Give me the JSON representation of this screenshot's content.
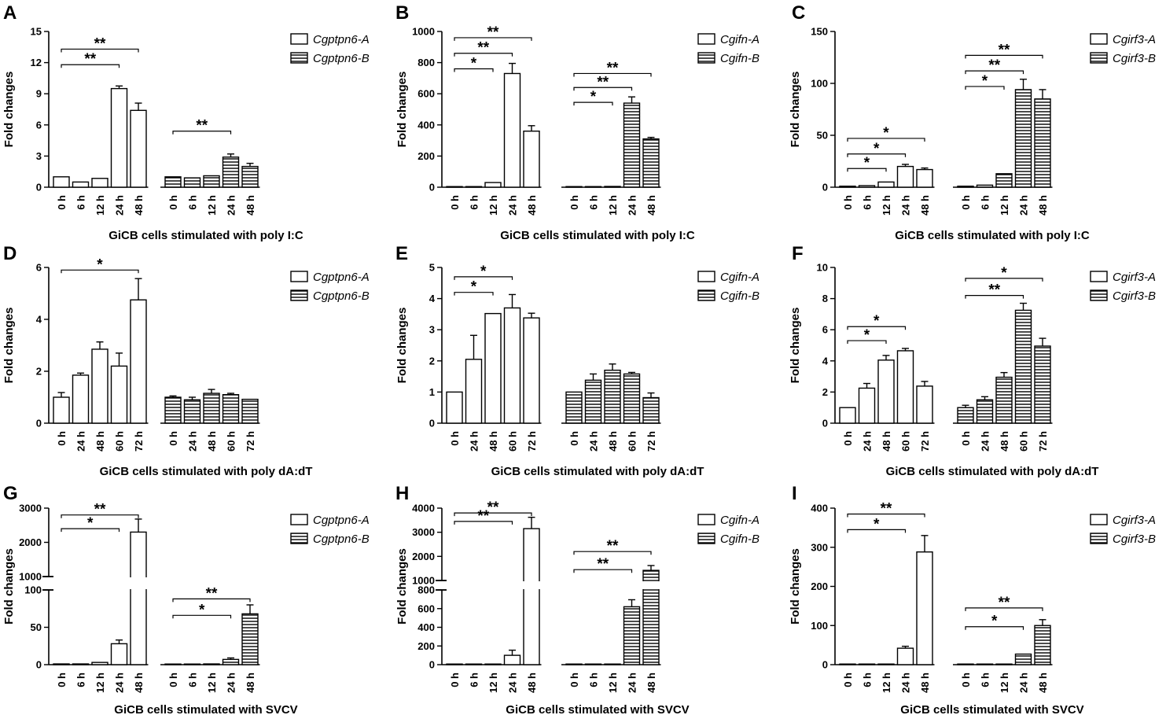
{
  "figure": {
    "panels": [
      {
        "letter": "A",
        "ylabel": "Fold changes",
        "xlabel": "GiCB cells stimulated with poly I:C",
        "legend": [
          "Cgptpn6-A",
          "Cgptpn6-B"
        ]
      },
      {
        "letter": "B",
        "ylabel": "Fold changes",
        "xlabel": "GiCB cells stimulated with poly I:C",
        "legend": [
          "Cgifn-A",
          "Cgifn-B"
        ]
      },
      {
        "letter": "C",
        "ylabel": "Fold changes",
        "xlabel": "GiCB cells stimulated with poly I:C",
        "legend": [
          "Cgirf3-A",
          "Cgirf3-B"
        ]
      },
      {
        "letter": "D",
        "ylabel": "Fold changes",
        "xlabel": "GiCB cells stimulated with poly dA:dT",
        "legend": [
          "Cgptpn6-A",
          "Cgptpn6-B"
        ]
      },
      {
        "letter": "E",
        "ylabel": "Fold changes",
        "xlabel": "GiCB cells stimulated with poly dA:dT",
        "legend": [
          "Cgifn-A",
          "Cgifn-B"
        ]
      },
      {
        "letter": "F",
        "ylabel": "Fold changes",
        "xlabel": "GiCB cells stimulated with poly dA:dT",
        "legend": [
          "Cgirf3-A",
          "Cgirf3-B"
        ]
      },
      {
        "letter": "G",
        "ylabel": "Fold changes",
        "xlabel": "GiCB cells stimulated with SVCV",
        "legend": [
          "Cgptpn6-A",
          "Cgptpn6-B"
        ]
      },
      {
        "letter": "H",
        "ylabel": "Fold changes",
        "xlabel": "GiCB cells stimulated with SVCV",
        "legend": [
          "Cgifn-A",
          "Cgifn-B"
        ]
      },
      {
        "letter": "I",
        "ylabel": "Fold changes",
        "xlabel": "GiCB cells stimulated with SVCV",
        "legend": [
          "Cgirf3-A",
          "Cgirf3-B"
        ]
      }
    ]
  },
  "chart_data": [
    {
      "panel": "A",
      "type": "bar",
      "title": "",
      "xlabel": "GiCB cells stimulated with poly I:C",
      "ylabel": "Fold changes",
      "categories": [
        "0 h",
        "6 h",
        "12 h",
        "24 h",
        "48 h"
      ],
      "ylim": [
        0,
        15
      ],
      "yticks": [
        0,
        3,
        6,
        9,
        12,
        15
      ],
      "series": [
        {
          "name": "Cgptpn6-A",
          "pattern": "open",
          "values": [
            1.0,
            0.5,
            0.85,
            9.5,
            7.4
          ],
          "errors": [
            0.1,
            0.05,
            0.1,
            0.25,
            0.7
          ]
        },
        {
          "name": "Cgptpn6-B",
          "pattern": "striped",
          "values": [
            1.0,
            0.9,
            1.1,
            2.9,
            2.0
          ],
          "errors": [
            0.1,
            0.1,
            0.1,
            0.3,
            0.3
          ]
        }
      ],
      "annotations": [
        {
          "series": 0,
          "from": 0,
          "to": 4,
          "level": 13.3,
          "label": "**"
        },
        {
          "series": 0,
          "from": 0,
          "to": 3,
          "level": 11.8,
          "label": "**"
        },
        {
          "series": 1,
          "from": 0,
          "to": 3,
          "level": 5.4,
          "label": "**"
        }
      ]
    },
    {
      "panel": "B",
      "type": "bar",
      "title": "",
      "xlabel": "GiCB cells stimulated with poly I:C",
      "ylabel": "Fold changes",
      "categories": [
        "0 h",
        "6 h",
        "12 h",
        "24 h",
        "48 h"
      ],
      "ylim": [
        0,
        1000
      ],
      "yticks": [
        0,
        200,
        400,
        600,
        800,
        1000
      ],
      "series": [
        {
          "name": "Cgifn-A",
          "pattern": "open",
          "values": [
            1,
            3,
            30,
            730,
            360
          ],
          "errors": [
            0.5,
            1,
            3,
            65,
            35
          ]
        },
        {
          "name": "Cgifn-B",
          "pattern": "striped",
          "values": [
            1,
            1,
            5,
            540,
            310
          ],
          "errors": [
            0.5,
            0.5,
            1,
            40,
            10
          ]
        }
      ],
      "annotations": [
        {
          "series": 0,
          "from": 0,
          "to": 4,
          "level": 960,
          "label": "**"
        },
        {
          "series": 0,
          "from": 0,
          "to": 3,
          "level": 860,
          "label": "**"
        },
        {
          "series": 0,
          "from": 0,
          "to": 2,
          "level": 760,
          "label": "*"
        },
        {
          "series": 1,
          "from": 0,
          "to": 4,
          "level": 730,
          "label": "**"
        },
        {
          "series": 1,
          "from": 0,
          "to": 3,
          "level": 640,
          "label": "**"
        },
        {
          "series": 1,
          "from": 0,
          "to": 2,
          "level": 545,
          "label": "*"
        }
      ]
    },
    {
      "panel": "C",
      "type": "bar",
      "title": "",
      "xlabel": "GiCB cells stimulated with poly I:C",
      "ylabel": "Fold changes",
      "categories": [
        "0 h",
        "6 h",
        "12 h",
        "24 h",
        "48 h"
      ],
      "ylim": [
        0,
        150
      ],
      "yticks": [
        0,
        50,
        100,
        150
      ],
      "series": [
        {
          "name": "Cgirf3-A",
          "pattern": "open",
          "values": [
            1,
            1.5,
            5,
            20,
            17
          ],
          "errors": [
            0.2,
            0.3,
            0.5,
            2,
            1.5
          ]
        },
        {
          "name": "Cgirf3-B",
          "pattern": "striped",
          "values": [
            1,
            2,
            13,
            94,
            85
          ],
          "errors": [
            0.2,
            0.5,
            1,
            10,
            9
          ]
        }
      ],
      "annotations": [
        {
          "series": 0,
          "from": 0,
          "to": 4,
          "level": 47,
          "label": "*"
        },
        {
          "series": 0,
          "from": 0,
          "to": 3,
          "level": 32,
          "label": "*"
        },
        {
          "series": 0,
          "from": 0,
          "to": 2,
          "level": 18,
          "label": "*"
        },
        {
          "series": 1,
          "from": 0,
          "to": 4,
          "level": 127,
          "label": "**"
        },
        {
          "series": 1,
          "from": 0,
          "to": 3,
          "level": 112,
          "label": "**"
        },
        {
          "series": 1,
          "from": 0,
          "to": 2,
          "level": 97,
          "label": "*"
        }
      ]
    },
    {
      "panel": "D",
      "type": "bar",
      "title": "",
      "xlabel": "GiCB cells stimulated with poly dA:dT",
      "ylabel": "Fold changes",
      "categories": [
        "0 h",
        "24 h",
        "48 h",
        "60 h",
        "72 h"
      ],
      "ylim": [
        0,
        6
      ],
      "yticks": [
        0,
        2,
        4,
        6
      ],
      "series": [
        {
          "name": "Cgptpn6-A",
          "pattern": "open",
          "values": [
            1.0,
            1.85,
            2.85,
            2.2,
            4.75
          ],
          "errors": [
            0.18,
            0.08,
            0.28,
            0.5,
            0.82
          ]
        },
        {
          "name": "Cgptpn6-B",
          "pattern": "striped",
          "values": [
            1.0,
            0.9,
            1.15,
            1.1,
            0.92
          ],
          "errors": [
            0.05,
            0.1,
            0.15,
            0.05,
            0.03
          ]
        }
      ],
      "annotations": [
        {
          "series": 0,
          "from": 0,
          "to": 4,
          "level": 5.9,
          "label": "*"
        }
      ]
    },
    {
      "panel": "E",
      "type": "bar",
      "title": "",
      "xlabel": "GiCB cells stimulated with poly dA:dT",
      "ylabel": "Fold changes",
      "categories": [
        "0 h",
        "24 h",
        "48 h",
        "60 h",
        "72 h"
      ],
      "ylim": [
        0,
        5
      ],
      "yticks": [
        0,
        1,
        2,
        3,
        4,
        5
      ],
      "series": [
        {
          "name": "Cgifn-A",
          "pattern": "open",
          "values": [
            1.0,
            2.05,
            3.52,
            3.7,
            3.38
          ],
          "errors": [
            0.02,
            0.77,
            0.02,
            0.43,
            0.15
          ]
        },
        {
          "name": "Cgifn-B",
          "pattern": "striped",
          "values": [
            1.0,
            1.38,
            1.7,
            1.58,
            0.82
          ],
          "errors": [
            0.03,
            0.2,
            0.2,
            0.05,
            0.15
          ]
        }
      ],
      "annotations": [
        {
          "series": 0,
          "from": 0,
          "to": 3,
          "level": 4.7,
          "label": "*"
        },
        {
          "series": 0,
          "from": 0,
          "to": 2,
          "level": 4.2,
          "label": "*"
        }
      ]
    },
    {
      "panel": "F",
      "type": "bar",
      "title": "",
      "xlabel": "GiCB cells stimulated with poly dA:dT",
      "ylabel": "Fold changes",
      "categories": [
        "0 h",
        "24 h",
        "48 h",
        "60 h",
        "72 h"
      ],
      "ylim": [
        0,
        10
      ],
      "yticks": [
        0,
        2,
        4,
        6,
        8,
        10
      ],
      "series": [
        {
          "name": "Cgirf3-A",
          "pattern": "open",
          "values": [
            1.0,
            2.25,
            4.05,
            4.65,
            2.38
          ],
          "errors": [
            0.02,
            0.3,
            0.3,
            0.15,
            0.3
          ]
        },
        {
          "name": "Cgirf3-B",
          "pattern": "striped",
          "values": [
            1.0,
            1.5,
            2.95,
            7.25,
            4.95
          ],
          "errors": [
            0.15,
            0.2,
            0.3,
            0.45,
            0.5
          ]
        }
      ],
      "annotations": [
        {
          "series": 0,
          "from": 0,
          "to": 3,
          "level": 6.2,
          "label": "*"
        },
        {
          "series": 0,
          "from": 0,
          "to": 2,
          "level": 5.3,
          "label": "*"
        },
        {
          "series": 1,
          "from": 0,
          "to": 4,
          "level": 9.3,
          "label": "*"
        },
        {
          "series": 1,
          "from": 0,
          "to": 3,
          "level": 8.2,
          "label": "**"
        }
      ]
    },
    {
      "panel": "G",
      "type": "bar",
      "broken_axis": true,
      "title": "",
      "xlabel": "GiCB cells stimulated with SVCV",
      "ylabel": "Fold changes",
      "categories": [
        "0 h",
        "6 h",
        "12 h",
        "24 h",
        "48 h"
      ],
      "ylim_lower": [
        0,
        100
      ],
      "yticks_lower": [
        0,
        50,
        100
      ],
      "ylim_upper": [
        1000,
        3000
      ],
      "yticks_upper": [
        1000,
        2000,
        3000
      ],
      "series": [
        {
          "name": "Cgptpn6-A",
          "pattern": "open",
          "values": [
            1,
            1,
            3,
            28,
            2300
          ],
          "errors": [
            0.3,
            0.3,
            1,
            5,
            380
          ]
        },
        {
          "name": "Cgptpn6-B",
          "pattern": "striped",
          "values": [
            0.5,
            0.5,
            1,
            7,
            68
          ],
          "errors": [
            0.2,
            0.2,
            0.3,
            2,
            12
          ]
        }
      ],
      "annotations": [
        {
          "series": 0,
          "from": 0,
          "to": 4,
          "level": 2800,
          "label": "**"
        },
        {
          "series": 0,
          "from": 0,
          "to": 3,
          "level": 2400,
          "label": "*"
        },
        {
          "series": 1,
          "from": 0,
          "to": 4,
          "level": 88,
          "label": "**"
        },
        {
          "series": 1,
          "from": 0,
          "to": 3,
          "level": 66,
          "label": "*"
        }
      ]
    },
    {
      "panel": "H",
      "type": "bar",
      "broken_axis": true,
      "title": "",
      "xlabel": "GiCB cells stimulated with SVCV",
      "ylabel": "Fold changes",
      "categories": [
        "0 h",
        "6 h",
        "12 h",
        "24 h",
        "48 h"
      ],
      "ylim_lower": [
        0,
        800
      ],
      "yticks_lower": [
        0,
        200,
        400,
        600,
        800
      ],
      "ylim_upper": [
        1000,
        4000
      ],
      "yticks_upper": [
        1000,
        2000,
        3000,
        4000
      ],
      "series": [
        {
          "name": "Cgifn-A",
          "pattern": "open",
          "values": [
            1,
            1,
            2,
            100,
            3150
          ],
          "errors": [
            0.3,
            0.3,
            0.5,
            55,
            470
          ]
        },
        {
          "name": "Cgifn-B",
          "pattern": "striped",
          "values": [
            1,
            1,
            2,
            620,
            1420
          ],
          "errors": [
            0.3,
            0.3,
            0.5,
            75,
            200
          ]
        }
      ],
      "annotations": [
        {
          "series": 0,
          "from": 0,
          "to": 4,
          "level": 3800,
          "label": "**"
        },
        {
          "series": 0,
          "from": 0,
          "to": 3,
          "level": 3450,
          "label": "**"
        },
        {
          "series": 1,
          "from": 0,
          "to": 4,
          "level": 2200,
          "label": "**"
        },
        {
          "series": 1,
          "from": 0,
          "to": 3,
          "level": 1450,
          "label": "**"
        }
      ]
    },
    {
      "panel": "I",
      "type": "bar",
      "title": "",
      "xlabel": "GiCB cells stimulated with SVCV",
      "ylabel": "Fold changes",
      "categories": [
        "0 h",
        "6 h",
        "12 h",
        "24 h",
        "48 h"
      ],
      "ylim": [
        0,
        400
      ],
      "yticks": [
        0,
        100,
        200,
        300,
        400
      ],
      "series": [
        {
          "name": "Cgirf3-A",
          "pattern": "open",
          "values": [
            1,
            1,
            1.5,
            42,
            288
          ],
          "errors": [
            0.3,
            0.3,
            0.3,
            5,
            42
          ]
        },
        {
          "name": "Cgirf3-B",
          "pattern": "striped",
          "values": [
            1,
            1,
            1.5,
            27,
            100
          ],
          "errors": [
            0.3,
            0.3,
            0.3,
            3,
            15
          ]
        }
      ],
      "annotations": [
        {
          "series": 0,
          "from": 0,
          "to": 4,
          "level": 385,
          "label": "**"
        },
        {
          "series": 0,
          "from": 0,
          "to": 3,
          "level": 345,
          "label": "*"
        },
        {
          "series": 1,
          "from": 0,
          "to": 4,
          "level": 145,
          "label": "**"
        },
        {
          "series": 1,
          "from": 0,
          "to": 3,
          "level": 97,
          "label": "*"
        }
      ]
    }
  ]
}
